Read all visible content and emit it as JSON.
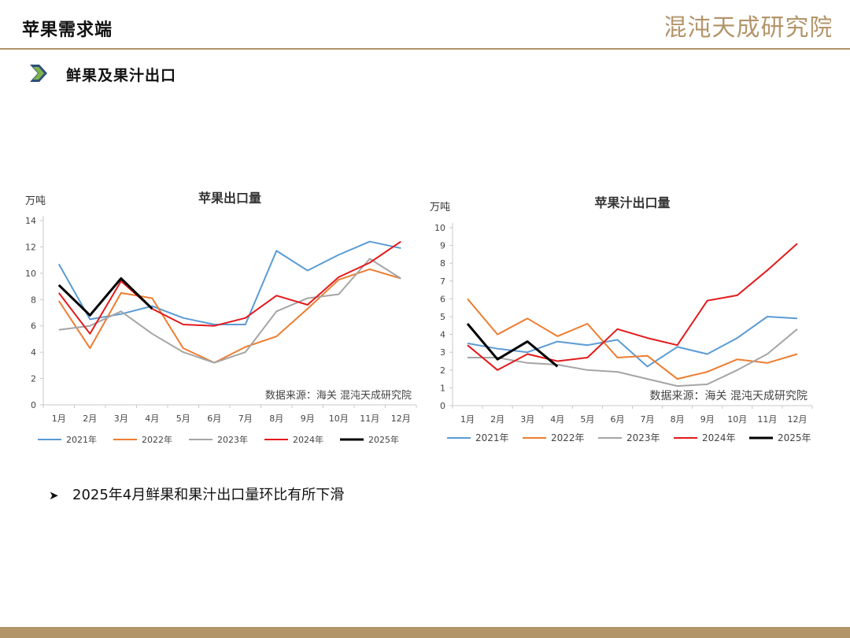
{
  "header": {
    "title": "苹果需求端",
    "logo_text": "混沌天成研究院"
  },
  "section": {
    "title": "鲜果及果汁出口",
    "icon": "chevron-right-icon"
  },
  "bullet": {
    "icon": "arrow-bullet-icon",
    "text": "2025年4月鲜果和果汁出口量环比有所下滑"
  },
  "colors": {
    "brand": "#b3956a",
    "series": [
      "#5b9bd5",
      "#ed7d31",
      "#a5a5a5",
      "#e31a1c",
      "#000000"
    ]
  },
  "chart_data": [
    {
      "type": "line",
      "title": "苹果出口量",
      "unit": "万吨",
      "source": "数据来源：海关 混沌天成研究院",
      "categories": [
        "1月",
        "2月",
        "3月",
        "4月",
        "5月",
        "6月",
        "7月",
        "8月",
        "9月",
        "10月",
        "11月",
        "12月"
      ],
      "ylim": [
        0,
        14
      ],
      "yticks": [
        0,
        2,
        4,
        6,
        8,
        10,
        12,
        14
      ],
      "legend_position": "bottom",
      "grid": false,
      "series": [
        {
          "name": "2021年",
          "values": [
            10.7,
            6.5,
            6.9,
            7.5,
            6.6,
            6.1,
            6.1,
            11.7,
            10.2,
            11.4,
            12.4,
            11.9
          ]
        },
        {
          "name": "2022年",
          "values": [
            7.9,
            4.3,
            8.5,
            8.1,
            4.3,
            3.2,
            4.4,
            5.2,
            7.3,
            9.5,
            10.3,
            9.6
          ]
        },
        {
          "name": "2023年",
          "values": [
            5.7,
            6.0,
            7.1,
            5.4,
            4.0,
            3.2,
            4.0,
            7.1,
            8.1,
            8.4,
            11.1,
            9.6
          ]
        },
        {
          "name": "2024年",
          "values": [
            8.5,
            5.4,
            9.4,
            7.3,
            6.1,
            6.0,
            6.6,
            8.3,
            7.6,
            9.7,
            10.8,
            12.4
          ]
        },
        {
          "name": "2025年",
          "values": [
            9.1,
            6.8,
            9.6,
            7.3,
            null,
            null,
            null,
            null,
            null,
            null,
            null,
            null
          ]
        }
      ]
    },
    {
      "type": "line",
      "title": "苹果汁出口量",
      "unit": "万吨",
      "source": "数据来源：海关 混沌天成研究院",
      "categories": [
        "1月",
        "2月",
        "3月",
        "4月",
        "5月",
        "6月",
        "7月",
        "8月",
        "9月",
        "10月",
        "11月",
        "12月"
      ],
      "ylim": [
        0,
        10
      ],
      "yticks": [
        0,
        1,
        2,
        3,
        4,
        5,
        6,
        7,
        8,
        9,
        10
      ],
      "legend_position": "bottom",
      "grid": false,
      "series": [
        {
          "name": "2021年",
          "values": [
            3.5,
            3.2,
            3.0,
            3.6,
            3.4,
            3.7,
            2.2,
            3.3,
            2.9,
            3.8,
            5.0,
            4.9
          ]
        },
        {
          "name": "2022年",
          "values": [
            6.0,
            4.0,
            4.9,
            3.9,
            4.6,
            2.7,
            2.8,
            1.5,
            1.9,
            2.6,
            2.4,
            2.9
          ]
        },
        {
          "name": "2023年",
          "values": [
            2.7,
            2.7,
            2.4,
            2.3,
            2.0,
            1.9,
            1.5,
            1.1,
            1.2,
            2.0,
            2.9,
            4.3
          ]
        },
        {
          "name": "2024年",
          "values": [
            3.4,
            2.0,
            2.9,
            2.5,
            2.7,
            4.3,
            3.8,
            3.4,
            5.9,
            6.2,
            7.6,
            9.1
          ]
        },
        {
          "name": "2025年",
          "values": [
            4.6,
            2.6,
            3.6,
            2.2,
            null,
            null,
            null,
            null,
            null,
            null,
            null,
            null
          ]
        }
      ]
    }
  ]
}
